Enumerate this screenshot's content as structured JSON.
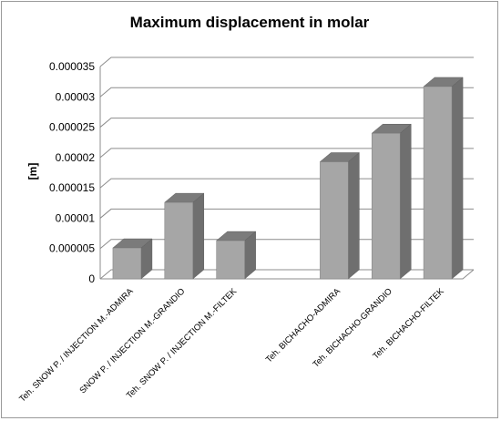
{
  "chart_data": {
    "type": "bar",
    "title": "Maximum displacement in molar",
    "ylabel": "[m]",
    "xlabel": "",
    "ylim": [
      0,
      3.5e-05
    ],
    "yticks": [
      "0",
      "0.000005",
      "0.00001",
      "0.000015",
      "0.00002",
      "0.000025",
      "0.00003",
      "0.000035"
    ],
    "grid": true,
    "style": "3d-column",
    "colors": {
      "bar_front": "#a6a6a6",
      "bar_top": "#7b7b7b",
      "bar_side": "#6f6f6f",
      "grid": "#8c8c8c",
      "frame": "#9a9a9a"
    },
    "categories": [
      "Teh. SNOW P. / INJECTION M.-ADMIRA",
      "SNOW P. / INJECTION M.-GRANDIO",
      "Teh. SNOW P. / INJECTION M.-FILTEK",
      "",
      "Teh. BICHACHO-ADMIRA",
      "Teh. BICHACHO-GRANDIO",
      "Teh. BICHACHO-FILTEK"
    ],
    "values": [
      5.1e-06,
      1.26e-05,
      6.3e-06,
      null,
      1.93e-05,
      2.4e-05,
      3.17e-05
    ]
  }
}
